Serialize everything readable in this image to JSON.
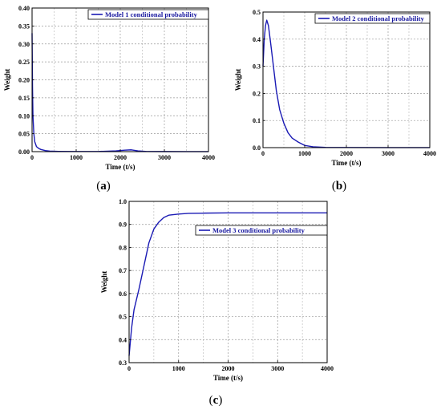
{
  "chart_data": [
    {
      "type": "line",
      "panel": "a",
      "panel_label": "a",
      "xlabel": "Time (t/s)",
      "ylabel": "Weight",
      "xlim": [
        0,
        4000
      ],
      "ylim": [
        0,
        0.4
      ],
      "xticks": [
        0,
        1000,
        2000,
        3000,
        4000
      ],
      "yticks": [
        0.0,
        0.05,
        0.1,
        0.15,
        0.2,
        0.25,
        0.3,
        0.35,
        0.4
      ],
      "ytick_labels": [
        "0.00",
        "0.05",
        "0.10",
        "0.15",
        "0.20",
        "0.25",
        "0.30",
        "0.35",
        "0.40"
      ],
      "grid": true,
      "legend_position": "top-right",
      "series": [
        {
          "name": "Model 1 conditional probability",
          "color": "#1a1ab4",
          "x": [
            0,
            10,
            20,
            40,
            60,
            100,
            150,
            200,
            300,
            400,
            600,
            1000,
            1500,
            1900,
            2100,
            2250,
            2400,
            2600,
            3000,
            3500,
            4000
          ],
          "y": [
            0.33,
            0.18,
            0.1,
            0.05,
            0.028,
            0.014,
            0.009,
            0.006,
            0.003,
            0.0015,
            0.0008,
            0.0005,
            0.0005,
            0.002,
            0.004,
            0.005,
            0.002,
            0.0005,
            0.0003,
            0.0002,
            0.0002
          ]
        }
      ]
    },
    {
      "type": "line",
      "panel": "b",
      "panel_label": "b",
      "xlabel": "Time (t/s)",
      "ylabel": "Weight",
      "xlim": [
        0,
        4000
      ],
      "ylim": [
        0,
        0.5
      ],
      "xticks": [
        0,
        1000,
        2000,
        3000,
        4000
      ],
      "yticks": [
        0.0,
        0.1,
        0.2,
        0.3,
        0.4,
        0.5
      ],
      "ytick_labels": [
        "0.0",
        "0.1",
        "0.2",
        "0.3",
        "0.4",
        "0.5"
      ],
      "grid": true,
      "legend_position": "top-right",
      "series": [
        {
          "name": "Model 2 conditional probability",
          "color": "#1a1ab4",
          "x": [
            0,
            30,
            60,
            90,
            130,
            180,
            250,
            320,
            400,
            500,
            600,
            700,
            850,
            1000,
            1200,
            1500,
            2000,
            3000,
            4000
          ],
          "y": [
            0.3,
            0.4,
            0.45,
            0.47,
            0.45,
            0.39,
            0.3,
            0.21,
            0.14,
            0.09,
            0.055,
            0.035,
            0.02,
            0.008,
            0.003,
            0.001,
            0.0005,
            0.0003,
            0.0003
          ]
        }
      ]
    },
    {
      "type": "line",
      "panel": "c",
      "panel_label": "c",
      "xlabel": "Time (t/s)",
      "ylabel": "Weight",
      "xlim": [
        0,
        4000
      ],
      "ylim": [
        0.3,
        1.0
      ],
      "xticks": [
        0,
        1000,
        2000,
        3000,
        4000
      ],
      "yticks": [
        0.3,
        0.4,
        0.5,
        0.6,
        0.7,
        0.8,
        0.9,
        1.0
      ],
      "ytick_labels": [
        "0.3",
        "0.4",
        "0.5",
        "0.6",
        "0.7",
        "0.8",
        "0.9",
        "1.0"
      ],
      "grid": true,
      "legend_position": "top-right",
      "series": [
        {
          "name": "Model 3 conditional probability",
          "color": "#1a1ab4",
          "x": [
            0,
            50,
            100,
            200,
            300,
            400,
            500,
            600,
            700,
            800,
            1000,
            1200,
            1500,
            2000,
            3000,
            4000
          ],
          "y": [
            0.33,
            0.45,
            0.53,
            0.62,
            0.72,
            0.82,
            0.88,
            0.91,
            0.93,
            0.94,
            0.945,
            0.948,
            0.949,
            0.95,
            0.95,
            0.95
          ]
        }
      ]
    }
  ]
}
